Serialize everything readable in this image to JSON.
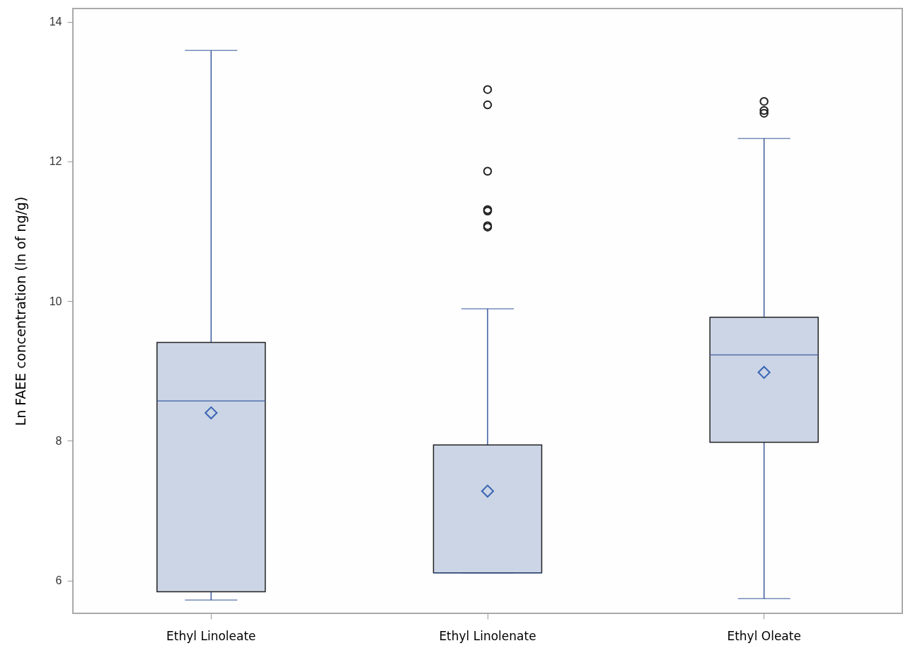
{
  "chart_data": {
    "type": "box",
    "ylabel": "Ln FAEE concentration (ln of ng/g)",
    "categories": [
      "Ethyl Linoleate",
      "Ethyl Linolenate",
      "Ethyl Oleate"
    ],
    "color": "#cbd5e5",
    "boxes": [
      {
        "low": 5.72,
        "q1": 5.84,
        "median": 8.57,
        "q3": 9.41,
        "high": 13.59,
        "mean": 8.4
      },
      {
        "low": 6.11,
        "q1": 6.11,
        "median": 6.11,
        "q3": 7.94,
        "high": 9.89,
        "mean": 7.28,
        "outliers": [
          13.03,
          12.81,
          11.86,
          11.31,
          11.29,
          11.08,
          11.06
        ]
      },
      {
        "low": 5.74,
        "q1": 7.98,
        "median": 9.23,
        "q3": 9.77,
        "high": 12.33,
        "mean": 8.98,
        "outliers": [
          12.86,
          12.73,
          12.69
        ]
      }
    ],
    "ylim": [
      5.53,
      14.19
    ],
    "yticks": [
      6,
      8,
      10,
      12,
      14
    ]
  }
}
